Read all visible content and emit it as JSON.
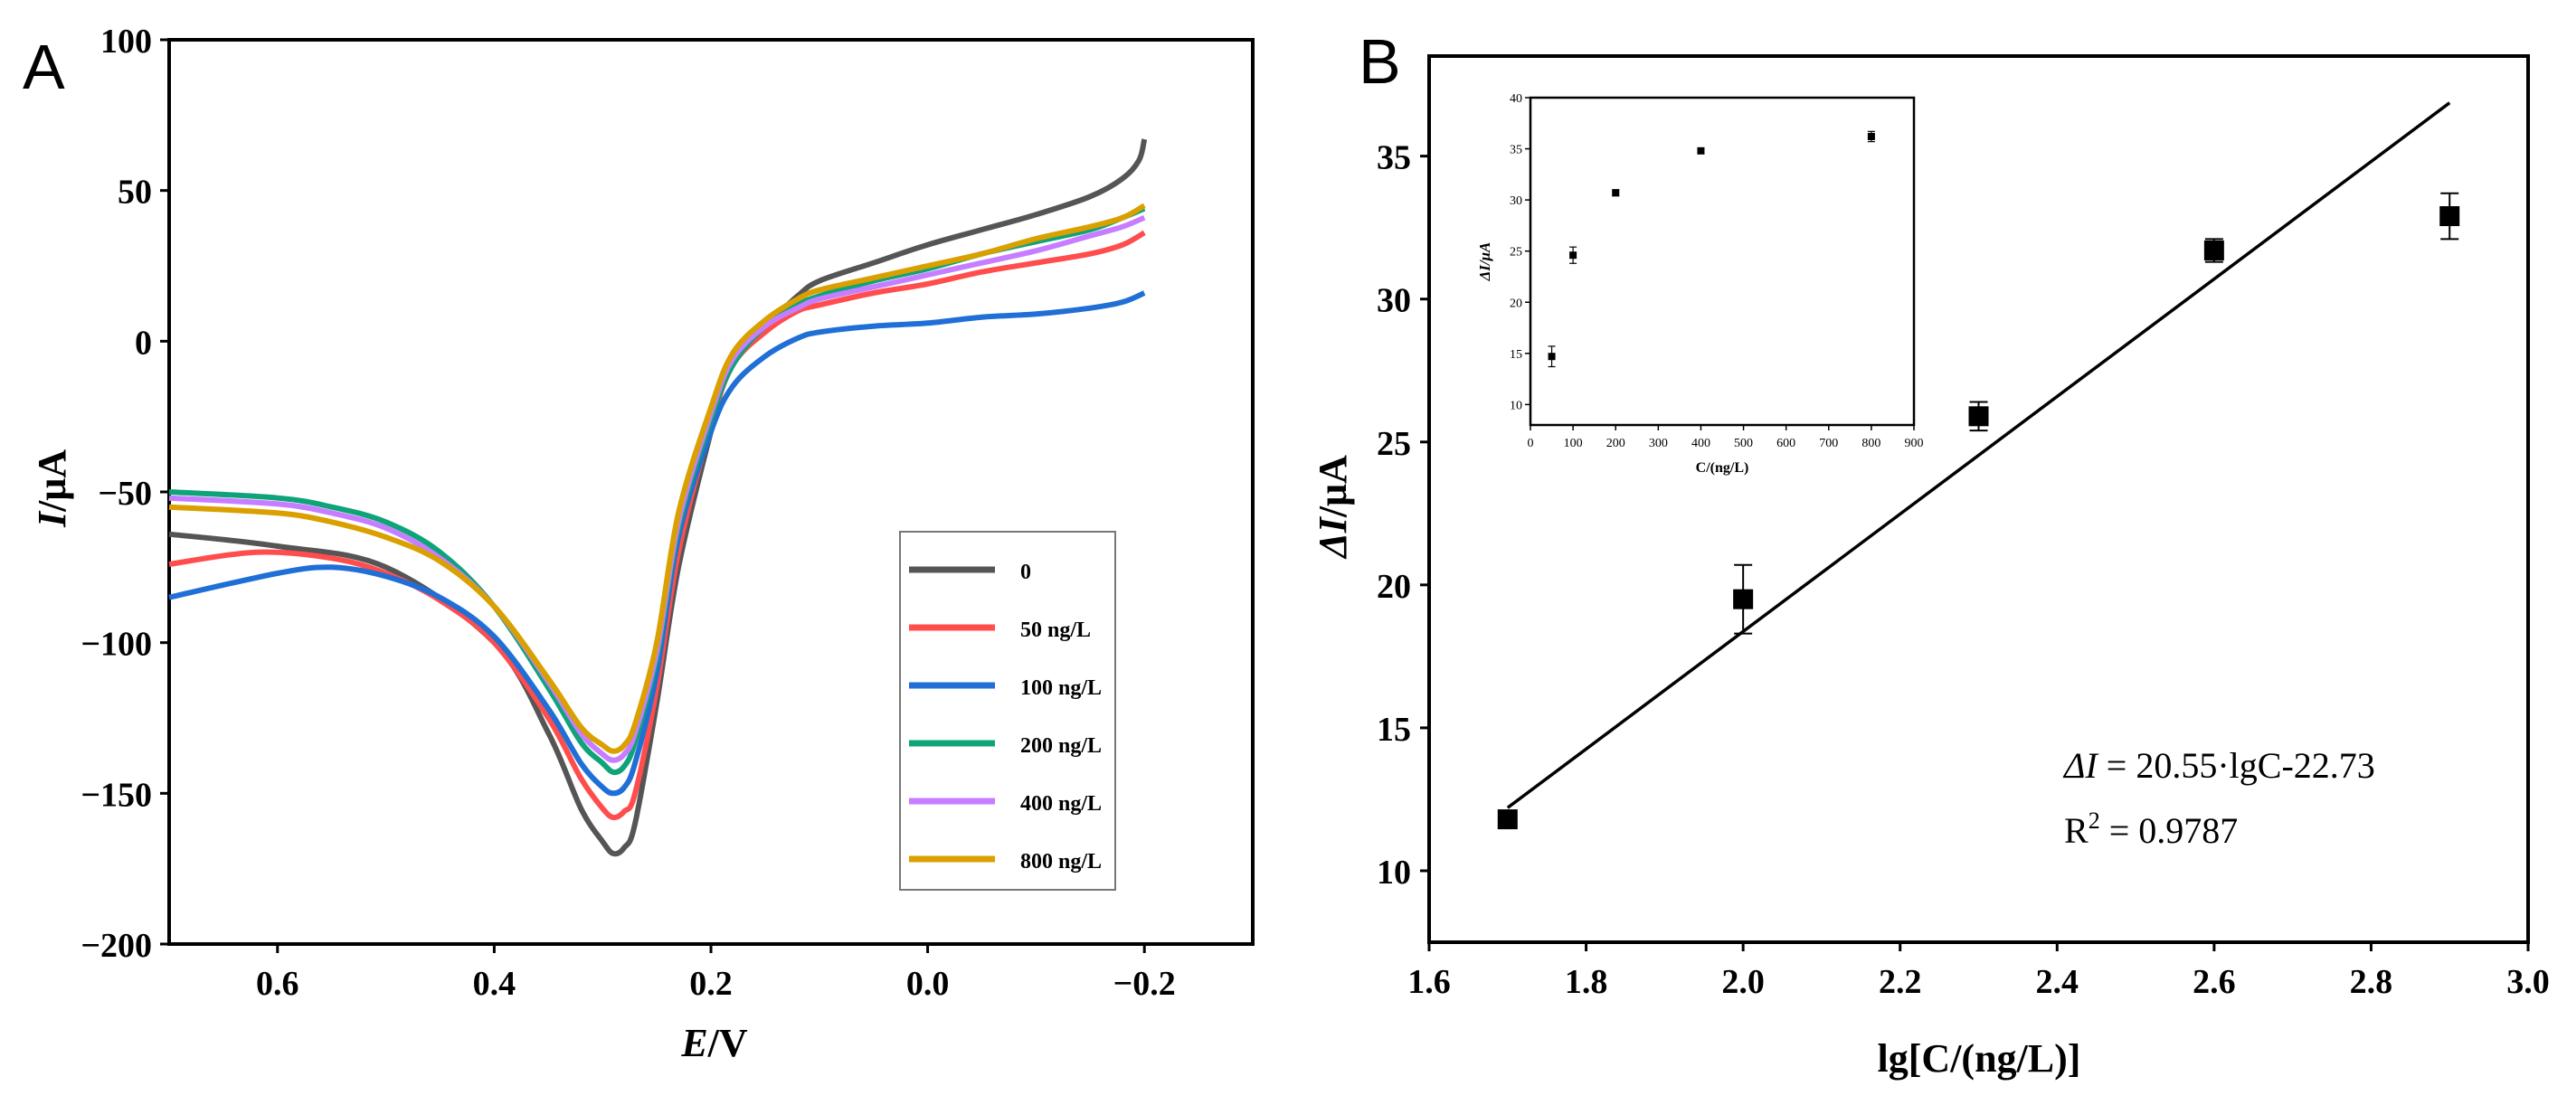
{
  "chart_data": [
    {
      "type": "line",
      "panel_label": "A",
      "xlabel_italic": "E",
      "xlabel_rest": "/V",
      "ylabel_italic": "I",
      "ylabel_rest": "/μA",
      "xlim": [
        0.7,
        -0.3
      ],
      "ylim": [
        -200,
        100
      ],
      "x_ticks": [
        0.6,
        0.4,
        0.2,
        0.0,
        -0.2
      ],
      "x_tick_labels": [
        "0.6",
        "0.4",
        "0.2",
        "0.0",
        "−0.2"
      ],
      "y_ticks": [
        100,
        50,
        0,
        -50,
        -100,
        -150,
        -200
      ],
      "y_tick_labels": [
        "100",
        "50",
        "0",
        "−50",
        "−100",
        "−150",
        "−200"
      ],
      "series": [
        {
          "name": "0",
          "color": "#555555",
          "x": [
            0.7,
            0.6,
            0.5,
            0.4,
            0.35,
            0.32,
            0.3,
            0.29,
            0.28,
            0.27,
            0.25,
            0.23,
            0.2,
            0.18,
            0.15,
            0.12,
            0.1,
            0.05,
            0.0,
            -0.05,
            -0.1,
            -0.15,
            -0.18,
            -0.195,
            -0.2
          ],
          "y": [
            -64,
            -68,
            -75,
            -100,
            -130,
            -155,
            -166,
            -170,
            -168,
            -160,
            -120,
            -75,
            -30,
            -5,
            5,
            15,
            20,
            26,
            32,
            37,
            42,
            48,
            54,
            60,
            67
          ]
        },
        {
          "name": "50 ng/L",
          "color": "#ff4d4d",
          "x": [
            0.7,
            0.62,
            0.55,
            0.5,
            0.45,
            0.4,
            0.35,
            0.32,
            0.3,
            0.29,
            0.28,
            0.27,
            0.25,
            0.23,
            0.2,
            0.18,
            0.15,
            0.12,
            0.1,
            0.05,
            0.0,
            -0.05,
            -0.1,
            -0.15,
            -0.18,
            -0.2
          ],
          "y": [
            -74,
            -70,
            -72,
            -77,
            -86,
            -100,
            -125,
            -145,
            -155,
            -158,
            -156,
            -150,
            -115,
            -70,
            -28,
            -8,
            3,
            10,
            12,
            16,
            19,
            23,
            26,
            29,
            32,
            36
          ]
        },
        {
          "name": "100 ng/L",
          "color": "#1f6fd6",
          "x": [
            0.7,
            0.6,
            0.55,
            0.5,
            0.45,
            0.4,
            0.35,
            0.32,
            0.3,
            0.29,
            0.28,
            0.27,
            0.25,
            0.23,
            0.2,
            0.18,
            0.15,
            0.12,
            0.1,
            0.05,
            0.0,
            -0.05,
            -0.1,
            -0.15,
            -0.18,
            -0.2
          ],
          "y": [
            -85,
            -77,
            -75,
            -78,
            -85,
            -98,
            -122,
            -140,
            -148,
            -150,
            -148,
            -140,
            -110,
            -65,
            -30,
            -15,
            -5,
            1,
            3,
            5,
            6,
            8,
            9,
            11,
            13,
            16
          ]
        },
        {
          "name": "200 ng/L",
          "color": "#0fa37a",
          "x": [
            0.7,
            0.6,
            0.55,
            0.5,
            0.45,
            0.4,
            0.35,
            0.32,
            0.3,
            0.29,
            0.28,
            0.27,
            0.25,
            0.23,
            0.2,
            0.18,
            0.15,
            0.12,
            0.1,
            0.05,
            0.0,
            -0.05,
            -0.1,
            -0.15,
            -0.18,
            -0.2
          ],
          "y": [
            -50,
            -52,
            -55,
            -60,
            -70,
            -88,
            -115,
            -133,
            -140,
            -143,
            -141,
            -133,
            -105,
            -62,
            -26,
            -8,
            5,
            12,
            15,
            20,
            24,
            29,
            33,
            37,
            41,
            44
          ]
        },
        {
          "name": "400 ng/L",
          "color": "#c77dff",
          "x": [
            0.7,
            0.6,
            0.55,
            0.5,
            0.45,
            0.4,
            0.35,
            0.32,
            0.3,
            0.29,
            0.28,
            0.27,
            0.25,
            0.23,
            0.2,
            0.18,
            0.15,
            0.12,
            0.1,
            0.05,
            0.0,
            -0.05,
            -0.1,
            -0.15,
            -0.18,
            -0.2
          ],
          "y": [
            -52,
            -54,
            -57,
            -62,
            -72,
            -88,
            -113,
            -130,
            -137,
            -139,
            -137,
            -130,
            -103,
            -60,
            -24,
            -6,
            5,
            11,
            14,
            18,
            22,
            26,
            30,
            35,
            38,
            41
          ]
        },
        {
          "name": "800 ng/L",
          "color": "#d9a000",
          "x": [
            0.7,
            0.6,
            0.55,
            0.5,
            0.45,
            0.4,
            0.35,
            0.32,
            0.3,
            0.29,
            0.28,
            0.27,
            0.25,
            0.23,
            0.2,
            0.18,
            0.15,
            0.12,
            0.1,
            0.05,
            0.0,
            -0.05,
            -0.1,
            -0.15,
            -0.18,
            -0.2
          ],
          "y": [
            -55,
            -57,
            -60,
            -65,
            -73,
            -88,
            -112,
            -128,
            -134,
            -136,
            -134,
            -127,
            -100,
            -57,
            -22,
            -4,
            7,
            14,
            17,
            21,
            25,
            29,
            34,
            38,
            41,
            45
          ]
        }
      ]
    },
    {
      "type": "scatter",
      "panel_label": "B",
      "xlabel": "lg[C/(ng/L)]",
      "ylabel_italic": "ΔI",
      "ylabel_rest": "/μA",
      "xlim": [
        1.6,
        3.0
      ],
      "ylim": [
        7.5,
        38.5
      ],
      "x_ticks": [
        1.6,
        1.8,
        2.0,
        2.2,
        2.4,
        2.6,
        2.8,
        3.0
      ],
      "x_tick_labels": [
        "1.6",
        "1.8",
        "2.0",
        "2.2",
        "2.4",
        "2.6",
        "2.8",
        "3.0"
      ],
      "y_ticks": [
        10,
        15,
        20,
        25,
        30,
        35
      ],
      "y_tick_labels": [
        "10",
        "15",
        "20",
        "25",
        "30",
        "35"
      ],
      "points": {
        "x": [
          1.7,
          2.0,
          2.3,
          2.6,
          2.9
        ],
        "y": [
          11.8,
          19.5,
          25.9,
          31.7,
          32.9
        ],
        "err": [
          0.25,
          1.2,
          0.5,
          0.4,
          0.8
        ]
      },
      "fit": {
        "slope": 20.55,
        "intercept": -22.73,
        "x_range": [
          1.7,
          2.9
        ]
      },
      "equation_lhs": "ΔI",
      "equation_rhs": " = 20.55·lgC-22.73",
      "r2_label": "R",
      "r2_exp": "2",
      "r2_value": " = 0.9787",
      "inset": {
        "type": "scatter",
        "xlabel": "C/(ng/L)",
        "ylabel": "ΔI/μA",
        "xlim": [
          0,
          900
        ],
        "ylim": [
          8,
          40
        ],
        "x_ticks": [
          0,
          100,
          200,
          300,
          400,
          500,
          600,
          700,
          800,
          900
        ],
        "x_tick_labels": [
          "0",
          "100",
          "200",
          "300",
          "400",
          "500",
          "600",
          "700",
          "800",
          "900"
        ],
        "y_ticks": [
          10,
          15,
          20,
          25,
          30,
          35,
          40
        ],
        "y_tick_labels": [
          "10",
          "15",
          "20",
          "25",
          "30",
          "35",
          "40"
        ],
        "points": {
          "x": [
            50,
            100,
            200,
            400,
            800
          ],
          "y": [
            14.7,
            24.6,
            30.7,
            34.8,
            36.2
          ],
          "err": [
            1.0,
            0.8,
            0.3,
            0.2,
            0.5
          ]
        }
      }
    }
  ]
}
